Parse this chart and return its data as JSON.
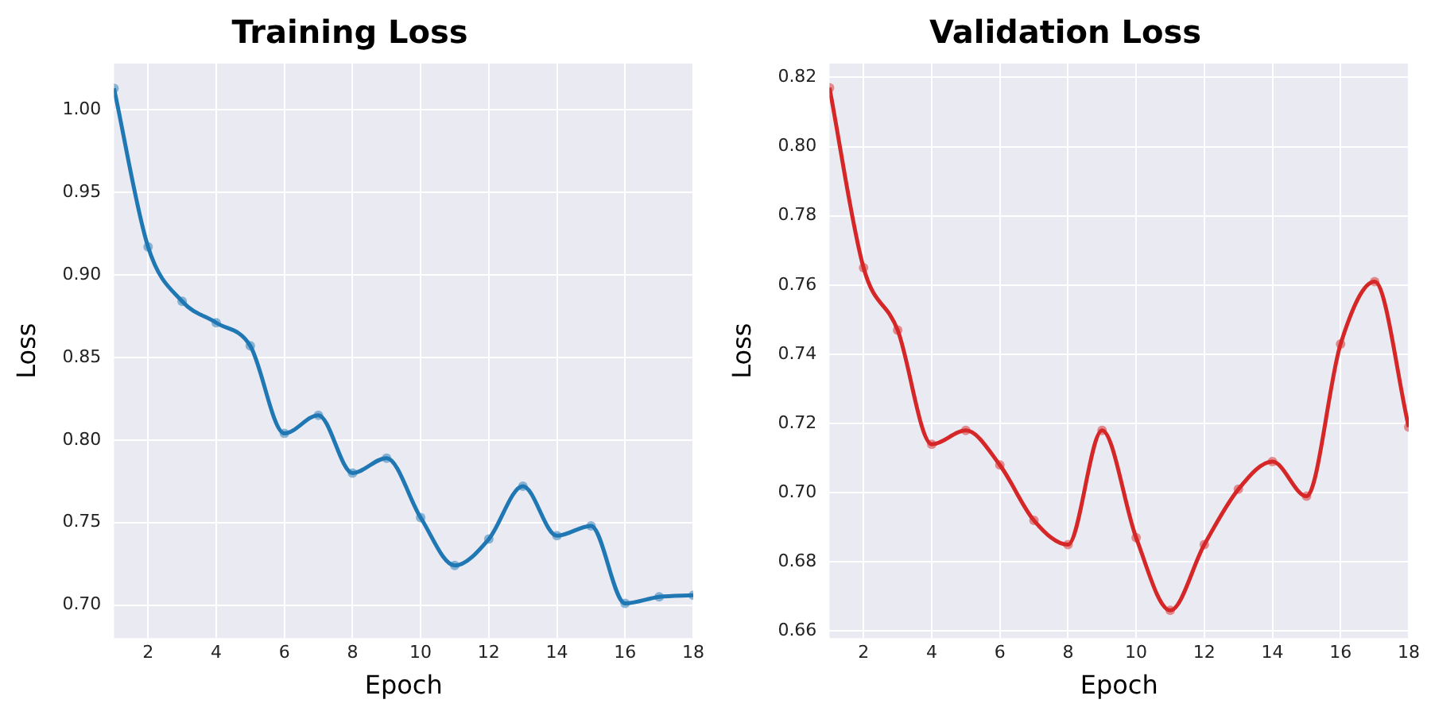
{
  "chart_data": [
    {
      "type": "line",
      "title": "Training Loss",
      "xlabel": "Epoch",
      "ylabel": "Loss",
      "x": [
        1,
        2,
        3,
        4,
        5,
        6,
        7,
        8,
        9,
        10,
        11,
        12,
        13,
        14,
        15,
        16,
        17,
        18
      ],
      "series": [
        {
          "color": "#1f77b4",
          "values": [
            1.013,
            0.917,
            0.884,
            0.871,
            0.857,
            0.804,
            0.815,
            0.78,
            0.789,
            0.753,
            0.724,
            0.74,
            0.772,
            0.742,
            0.748,
            0.701,
            0.705,
            0.706
          ]
        }
      ],
      "xlim": [
        1,
        18
      ],
      "xticks": [
        2,
        4,
        6,
        8,
        10,
        12,
        14,
        16,
        18
      ],
      "ylim": [
        0.68,
        1.028
      ],
      "yticks": [
        {
          "value": 0.7,
          "label": "0.70"
        },
        {
          "value": 0.75,
          "label": "0.75"
        },
        {
          "value": 0.8,
          "label": "0.80"
        },
        {
          "value": 0.85,
          "label": "0.85"
        },
        {
          "value": 0.9,
          "label": "0.90"
        },
        {
          "value": 0.95,
          "label": "0.95"
        },
        {
          "value": 1.0,
          "label": "1.00"
        }
      ],
      "grid": true,
      "legend": false,
      "marker": "circle",
      "line_style": "solid"
    },
    {
      "type": "line",
      "title": "Validation Loss",
      "xlabel": "Epoch",
      "ylabel": "Loss",
      "x": [
        1,
        2,
        3,
        4,
        5,
        6,
        7,
        8,
        9,
        10,
        11,
        12,
        13,
        14,
        15,
        16,
        17,
        18
      ],
      "series": [
        {
          "color": "#d62728",
          "values": [
            0.817,
            0.765,
            0.747,
            0.714,
            0.718,
            0.708,
            0.692,
            0.685,
            0.718,
            0.687,
            0.666,
            0.685,
            0.701,
            0.709,
            0.699,
            0.743,
            0.761,
            0.719
          ]
        }
      ],
      "xlim": [
        1,
        18
      ],
      "xticks": [
        2,
        4,
        6,
        8,
        10,
        12,
        14,
        16,
        18
      ],
      "ylim": [
        0.658,
        0.824
      ],
      "yticks": [
        {
          "value": 0.66,
          "label": "0.66"
        },
        {
          "value": 0.68,
          "label": "0.68"
        },
        {
          "value": 0.7,
          "label": "0.70"
        },
        {
          "value": 0.72,
          "label": "0.72"
        },
        {
          "value": 0.74,
          "label": "0.74"
        },
        {
          "value": 0.76,
          "label": "0.76"
        },
        {
          "value": 0.78,
          "label": "0.78"
        },
        {
          "value": 0.8,
          "label": "0.80"
        },
        {
          "value": 0.82,
          "label": "0.82"
        }
      ],
      "grid": true,
      "legend": false,
      "marker": "circle",
      "line_style": "solid"
    }
  ]
}
